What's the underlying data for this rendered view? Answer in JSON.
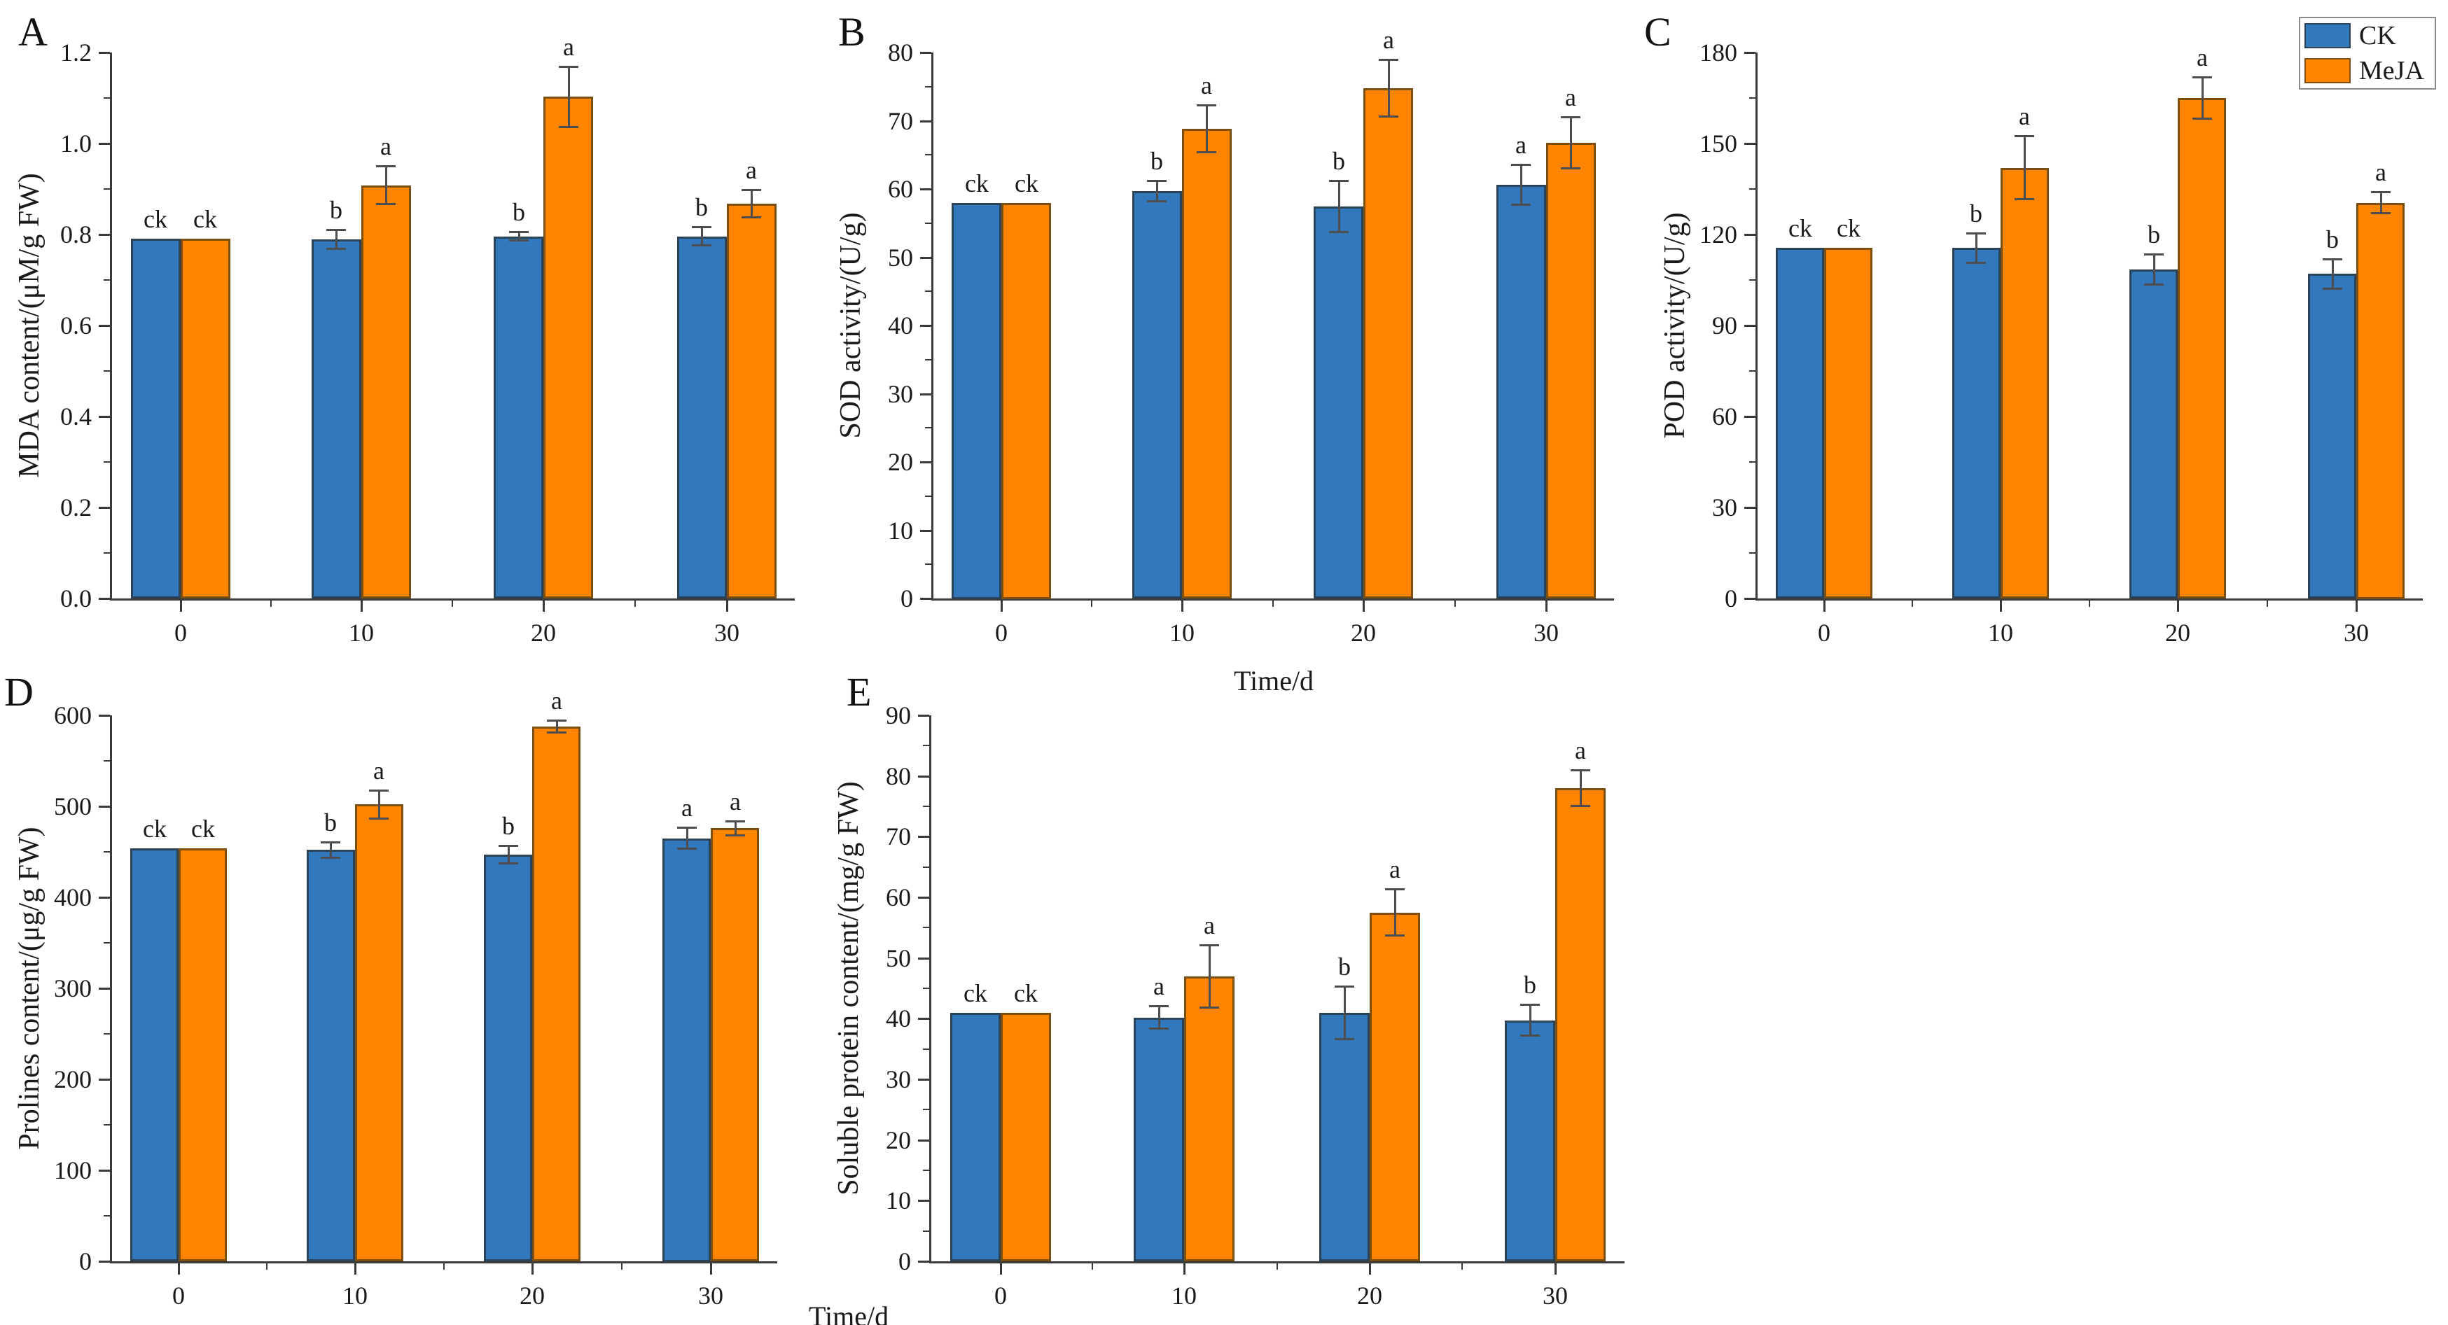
{
  "figure": {
    "colors": {
      "ck_fill": "#3179BC",
      "ck_border": "#2C4257",
      "meja_fill": "#FF8500",
      "meja_border": "#7A4F10",
      "axis": "#3a3a3a",
      "error_bar": "#4d4d4d"
    },
    "legend": {
      "items": [
        {
          "label": "CK",
          "color": "#3179BC",
          "border": "#2C4257"
        },
        {
          "label": "MeJA",
          "color": "#FF8500",
          "border": "#7A4F10"
        }
      ]
    }
  },
  "chart_data": [
    {
      "id": "A",
      "type": "bar",
      "panel_label": "A",
      "ylabel": "MDA content/(μM/g FW)",
      "xlabel": "",
      "xlabel_position": "none",
      "categories": [
        "0",
        "10",
        "20",
        "30"
      ],
      "ylim": [
        0,
        1.2
      ],
      "yticks": [
        "0.0",
        "0.2",
        "0.4",
        "0.6",
        "0.8",
        "1.0",
        "1.2"
      ],
      "series": [
        {
          "name": "CK",
          "values": [
            0.791,
            0.789,
            0.796,
            0.796
          ],
          "errors": [
            0,
            0.022,
            0.01,
            0.021
          ],
          "sig": [
            "ck",
            "b",
            "b",
            "b"
          ]
        },
        {
          "name": "MeJA",
          "values": [
            0.791,
            0.908,
            1.103,
            0.868
          ],
          "errors": [
            0,
            0.042,
            0.067,
            0.031
          ],
          "sig": [
            "ck",
            "a",
            "a",
            "a"
          ]
        }
      ]
    },
    {
      "id": "B",
      "type": "bar",
      "panel_label": "B",
      "ylabel": "SOD activity/(U/g)",
      "xlabel": "Time/d",
      "xlabel_position": "center",
      "categories": [
        "0",
        "10",
        "20",
        "30"
      ],
      "ylim": [
        0,
        80
      ],
      "yticks": [
        "0",
        "10",
        "20",
        "30",
        "40",
        "50",
        "60",
        "70",
        "80"
      ],
      "series": [
        {
          "name": "CK",
          "values": [
            58.0,
            59.7,
            57.4,
            60.6
          ],
          "errors": [
            0,
            1.5,
            3.8,
            3.0
          ],
          "sig": [
            "ck",
            "b",
            "b",
            "a"
          ]
        },
        {
          "name": "MeJA",
          "values": [
            58.0,
            68.8,
            74.8,
            66.8
          ],
          "errors": [
            0,
            3.5,
            4.2,
            3.8
          ],
          "sig": [
            "ck",
            "a",
            "a",
            "a"
          ]
        }
      ]
    },
    {
      "id": "C",
      "type": "bar",
      "panel_label": "C",
      "ylabel": "POD activity/(U/g)",
      "xlabel": "",
      "xlabel_position": "none",
      "categories": [
        "0",
        "10",
        "20",
        "30"
      ],
      "ylim": [
        0,
        180
      ],
      "yticks": [
        "0",
        "30",
        "60",
        "90",
        "120",
        "150",
        "180"
      ],
      "series": [
        {
          "name": "CK",
          "values": [
            115.5,
            115.5,
            108.5,
            107.0
          ],
          "errors": [
            0,
            5.0,
            5.0,
            5.0
          ],
          "sig": [
            "ck",
            "b",
            "b",
            "b"
          ]
        },
        {
          "name": "MeJA",
          "values": [
            115.5,
            142.0,
            165.0,
            130.5
          ],
          "errors": [
            0,
            10.5,
            7.0,
            3.5
          ],
          "sig": [
            "ck",
            "a",
            "a",
            "a"
          ]
        }
      ]
    },
    {
      "id": "D",
      "type": "bar",
      "panel_label": "D",
      "ylabel": "Prolines content/(μg/g FW)",
      "xlabel": "Time/d",
      "xlabel_position": "right-end",
      "categories": [
        "0",
        "10",
        "20",
        "30"
      ],
      "ylim": [
        0,
        600
      ],
      "yticks": [
        "0",
        "100",
        "200",
        "300",
        "400",
        "500",
        "600"
      ],
      "series": [
        {
          "name": "CK",
          "values": [
            454,
            452,
            447,
            465
          ],
          "errors": [
            0,
            9,
            10,
            12
          ],
          "sig": [
            "ck",
            "b",
            "b",
            "a"
          ]
        },
        {
          "name": "MeJA",
          "values": [
            454,
            502,
            588,
            476
          ],
          "errors": [
            0,
            16,
            7,
            8
          ],
          "sig": [
            "ck",
            "a",
            "a",
            "a"
          ]
        }
      ]
    },
    {
      "id": "E",
      "type": "bar",
      "panel_label": "E",
      "ylabel": "Soluble protein content/(mg/g FW)",
      "xlabel": "",
      "xlabel_position": "none",
      "categories": [
        "0",
        "10",
        "20",
        "30"
      ],
      "ylim": [
        0,
        90
      ],
      "yticks": [
        "0",
        "10",
        "20",
        "30",
        "40",
        "50",
        "60",
        "70",
        "80",
        "90"
      ],
      "series": [
        {
          "name": "CK",
          "values": [
            41.0,
            40.2,
            41.0,
            39.7
          ],
          "errors": [
            0,
            1.9,
            4.4,
            2.6
          ],
          "sig": [
            "ck",
            "a",
            "b",
            "b"
          ]
        },
        {
          "name": "MeJA",
          "values": [
            41.0,
            47.0,
            57.5,
            78.0
          ],
          "errors": [
            0,
            5.2,
            3.9,
            3.0
          ],
          "sig": [
            "ck",
            "a",
            "a",
            "a"
          ]
        }
      ]
    }
  ]
}
